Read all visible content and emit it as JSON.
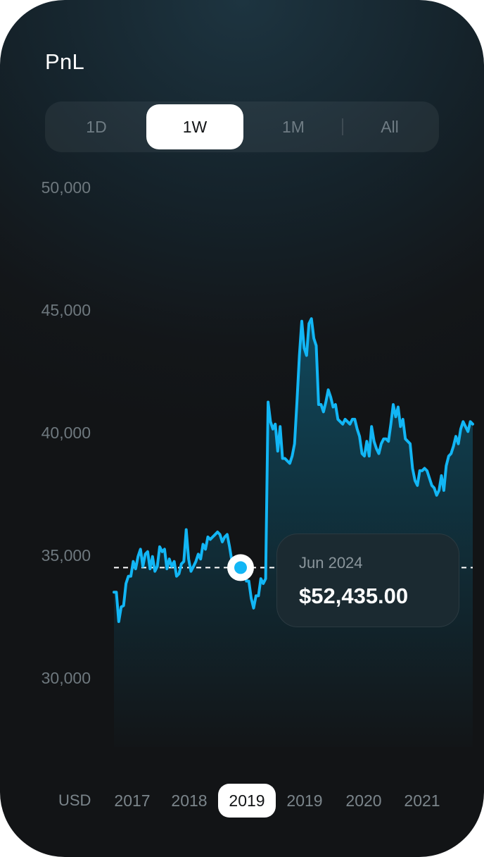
{
  "header": {
    "title": "PnL"
  },
  "tabs": [
    {
      "label": "1D",
      "active": false
    },
    {
      "label": "1W",
      "active": true
    },
    {
      "label": "1M",
      "active": false
    },
    {
      "label": "All",
      "active": false
    }
  ],
  "tooltip": {
    "date": "Jun 2024",
    "value": "$52,435.00"
  },
  "colors": {
    "line": "#12b6f5",
    "fill_top": "#0f4d63",
    "background": "#131619"
  },
  "chart_data": {
    "type": "area",
    "y_unit": "USD",
    "y_ticks": [
      "50,000",
      "45,000",
      "40,000",
      "35,000",
      "30,000"
    ],
    "y_tick_values": [
      50000,
      45000,
      40000,
      35000,
      30000
    ],
    "ylim": [
      27000,
      51000
    ],
    "x_tick_labels": [
      "2017",
      "2018",
      "2019",
      "2019",
      "2020",
      "2021"
    ],
    "x_selected_index": 2,
    "reference_value": 34500,
    "marker_value": 34500,
    "values": [
      33500,
      33500,
      32300,
      32900,
      32950,
      33850,
      34150,
      34150,
      34750,
      34450,
      34950,
      35250,
      34550,
      35050,
      35150,
      34450,
      34950,
      34350,
      34550,
      35350,
      35150,
      35250,
      34450,
      34850,
      34550,
      34750,
      34150,
      34250,
      34650,
      34750,
      36050,
      34850,
      34350,
      34550,
      34750,
      35050,
      34850,
      35450,
      35250,
      35750,
      35650,
      35750,
      35850,
      35950,
      35850,
      35550,
      35750,
      35850,
      35350,
      34750,
      34850,
      34950,
      34950,
      34950,
      34950,
      33950,
      33950,
      33250,
      32850,
      33350,
      33350,
      34050,
      33850,
      34050,
      41250,
      40450,
      40150,
      40350,
      39250,
      40250,
      38950,
      38950,
      38850,
      38750,
      39050,
      39550,
      41250,
      43150,
      44550,
      43450,
      43150,
      44450,
      44650,
      43850,
      43550,
      41150,
      41150,
      40850,
      41250,
      41750,
      41450,
      41050,
      41150,
      40550,
      40450,
      40350,
      40550,
      40450,
      40350,
      40550,
      40550,
      40150,
      39850,
      39150,
      39050,
      39650,
      39050,
      40250,
      39650,
      39350,
      39150,
      39550,
      39750,
      39750,
      39650,
      40350,
      41150,
      40650,
      41050,
      40250,
      40550,
      39750,
      39650,
      39550,
      38550,
      38050,
      37850,
      38450,
      38450,
      38550,
      38450,
      38150,
      37850,
      37750,
      37450,
      37650,
      38250,
      37650,
      38650,
      39050,
      39150,
      39450,
      39850,
      39550,
      40150,
      40450,
      40250,
      40050,
      40450,
      40350
    ]
  }
}
